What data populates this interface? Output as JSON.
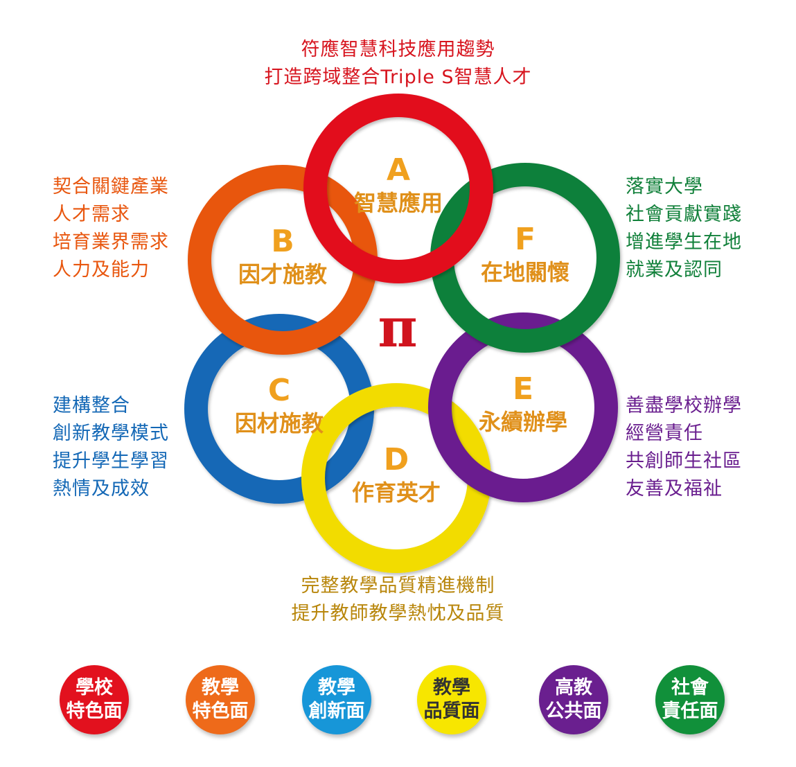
{
  "top_text": {
    "line1": "符應智慧科技應用趨勢",
    "line2": "打造跨域整合Triple S智慧人才"
  },
  "left_b_text": {
    "lines": [
      "契合關鍵產業",
      "人才需求",
      "培育業界需求",
      "人力及能力"
    ]
  },
  "left_c_text": {
    "lines": [
      "建構整合",
      "創新教學模式",
      "提升學生學習",
      "熱情及成效"
    ]
  },
  "right_f_text": {
    "lines": [
      "落實大學",
      "社會貢獻實踐",
      "增進學生在地",
      "就業及認同"
    ]
  },
  "right_e_text": {
    "lines": [
      "善盡學校辦學",
      "經營責任",
      "共創師生社區",
      "友善及福祉"
    ]
  },
  "bottom_text": {
    "line1": "完整教學品質精進機制",
    "line2": "提升教師教學熱忱及品質"
  },
  "center_symbol": "π",
  "rings": [
    {
      "letter": "A",
      "label": "智慧應用",
      "color": "#e2111e"
    },
    {
      "letter": "B",
      "label": "因才施教",
      "color": "#e8560e"
    },
    {
      "letter": "C",
      "label": "因材施教",
      "color": "#1468b6"
    },
    {
      "letter": "D",
      "label": "作育英才",
      "color": "#f2dc00"
    },
    {
      "letter": "E",
      "label": "永續辦學",
      "color": "#6a1f8f"
    },
    {
      "letter": "F",
      "label": "在地關懷",
      "color": "#11803a"
    }
  ],
  "badges": [
    {
      "line1": "學校",
      "line2": "特色面",
      "bg": "#e2111e",
      "fg": "#ffffff"
    },
    {
      "line1": "教學",
      "line2": "特色面",
      "bg": "#ee6a1a",
      "fg": "#ffffff"
    },
    {
      "line1": "教學",
      "line2": "創新面",
      "bg": "#1796d8",
      "fg": "#ffffff"
    },
    {
      "line1": "教學",
      "line2": "品質面",
      "bg": "#f7e600",
      "fg": "#333333"
    },
    {
      "line1": "高教",
      "line2": "公共面",
      "bg": "#6a1f8f",
      "fg": "#ffffff"
    },
    {
      "line1": "社會",
      "line2": "責任面",
      "bg": "#11903a",
      "fg": "#ffffff"
    }
  ]
}
